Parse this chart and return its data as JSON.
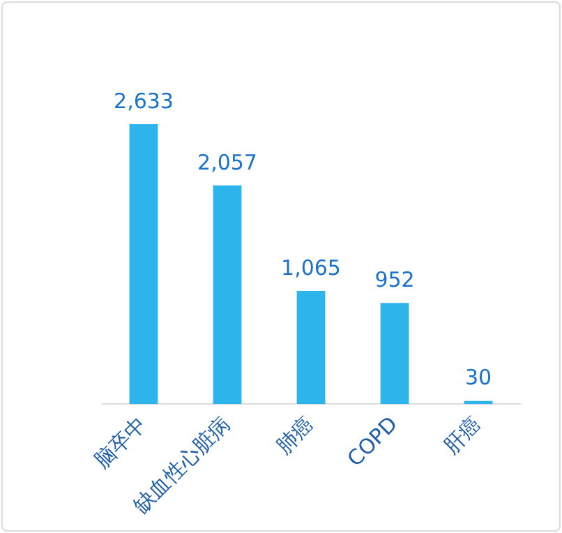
{
  "chart_data": {
    "type": "bar",
    "categories": [
      "脑卒中",
      "缺血性心脏病",
      "肺癌",
      "COPD",
      "肝癌"
    ],
    "values": [
      2633,
      2057,
      1065,
      952,
      30
    ],
    "value_labels": [
      "2,633",
      "2,057",
      "1,065",
      "952",
      "30"
    ],
    "color": "#2db5eb",
    "grid": false,
    "legend": false
  }
}
